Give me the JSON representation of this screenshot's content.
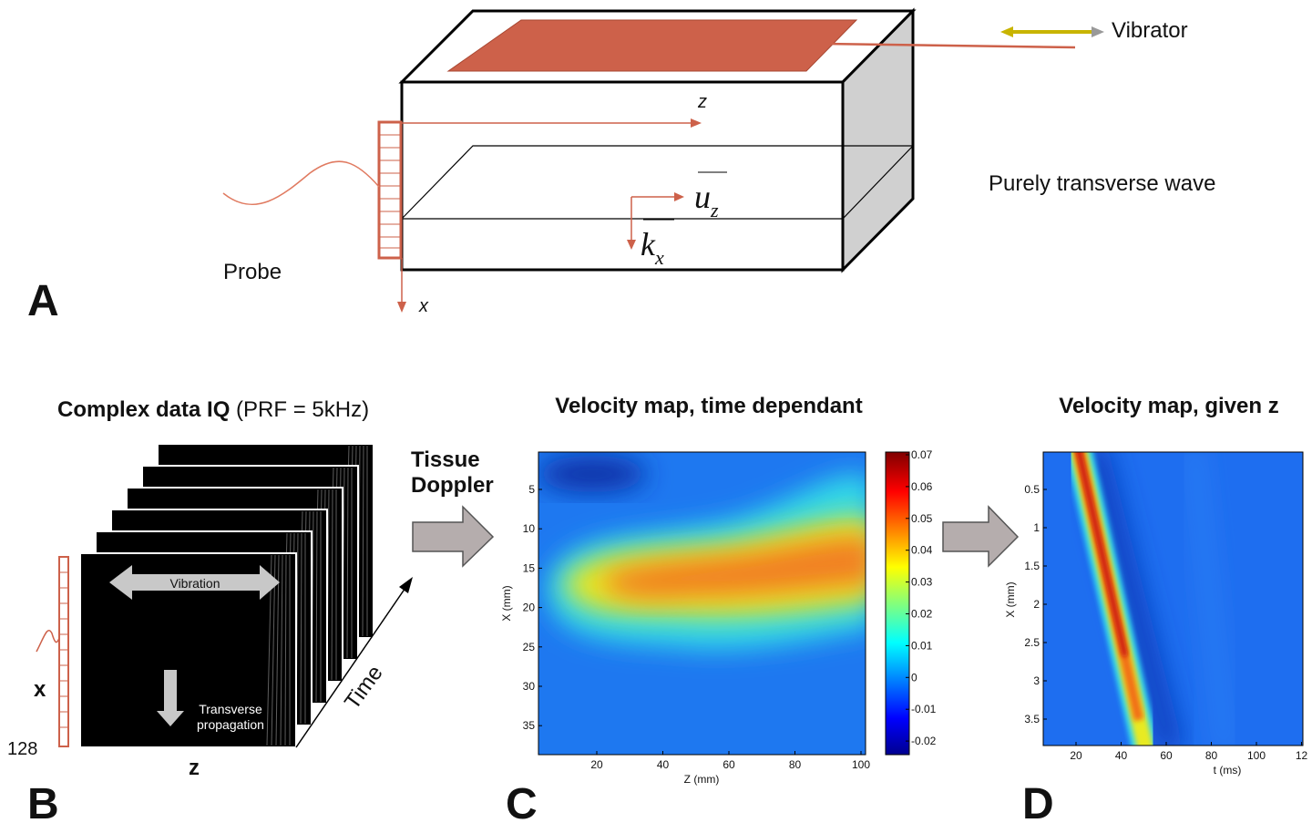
{
  "panel_a": {
    "label": "A",
    "vibrator": "Vibrator",
    "z_axis": "z",
    "u": "u",
    "u_sub": "z",
    "k": "k",
    "k_sub": "x",
    "wave": "Purely transverse wave",
    "probe": "Probe",
    "x_axis": "x"
  },
  "panel_b": {
    "label": "B",
    "title_bold": "Complex data IQ",
    "title_rest": "(PRF = 5kHz)",
    "vibration": "Vibration",
    "propagation": [
      "Transverse",
      "propagation"
    ],
    "x_axis": "x",
    "elements": 128,
    "z_axis": "z",
    "time": "Time"
  },
  "arrow_label": [
    "Tissue",
    "Doppler"
  ],
  "panel_c": {
    "label": "C",
    "title": "Velocity map, time dependant",
    "yticks": [
      5,
      10,
      15,
      20,
      25,
      30,
      35
    ],
    "ylabel": "X (mm)",
    "xticks": [
      20,
      40,
      60,
      80,
      100
    ],
    "xlabel": "Z (mm)",
    "colorbar_ticks": [
      0.07,
      0.06,
      0.05,
      0.04,
      0.03,
      0.02,
      0.01,
      0,
      -0.01,
      -0.02
    ]
  },
  "panel_d": {
    "label": "D",
    "title": "Velocity map, given z",
    "yticks": [
      0.5,
      1,
      1.5,
      2,
      2.5,
      3,
      3.5
    ],
    "ylabel": "X (mm)",
    "xticks": [
      20,
      40,
      60,
      80,
      100,
      12
    ],
    "xlabel": "t (ms)"
  }
}
